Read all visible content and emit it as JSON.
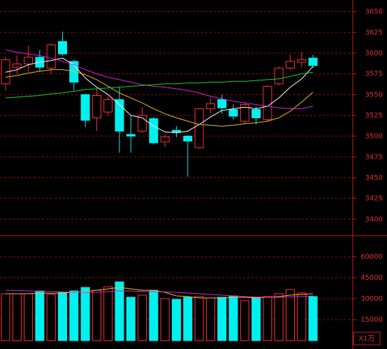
{
  "chart_data": [
    {
      "type": "candlestick",
      "up_color": "#ff3232",
      "down_color": "#00f0f0",
      "open": [
        3563,
        3583,
        3587,
        3595,
        3582,
        3614,
        3590,
        3550,
        3522,
        3529,
        3544,
        3502,
        3506,
        3521,
        3493,
        3507,
        3500,
        3486,
        3533,
        3544,
        3532,
        3518,
        3532,
        3520,
        3563,
        3582,
        3589,
        3594
      ],
      "high": [
        3595,
        3597,
        3609,
        3604,
        3612,
        3626,
        3592,
        3551,
        3557,
        3548,
        3559,
        3525,
        3535,
        3523,
        3502,
        3512,
        3501,
        3534,
        3546,
        3550,
        3538,
        3540,
        3536,
        3561,
        3584,
        3598,
        3601,
        3598
      ],
      "low": [
        3555,
        3575,
        3578,
        3578,
        3575,
        3597,
        3555,
        3511,
        3506,
        3525,
        3480,
        3480,
        3504,
        3490,
        3487,
        3499,
        3451,
        3485,
        3527,
        3527,
        3520,
        3515,
        3514,
        3518,
        3561,
        3580,
        3583,
        3582
      ],
      "close": [
        3592,
        3587,
        3595,
        3583,
        3610,
        3599,
        3565,
        3519,
        3549,
        3544,
        3506,
        3500,
        3525,
        3492,
        3499,
        3505,
        3494,
        3533,
        3539,
        3534,
        3524,
        3538,
        3522,
        3560,
        3582,
        3590,
        3592,
        3585
      ],
      "series": [
        {
          "color": "#ffffff",
          "values": [
            3577,
            3580,
            3586,
            3589,
            3591,
            3594,
            3586,
            3570,
            3559,
            3550,
            3538,
            3525,
            3522,
            3512,
            3505,
            3504,
            3506,
            3514,
            3523,
            3531,
            3533,
            3535,
            3533,
            3536,
            3546,
            3559,
            3569,
            3584
          ]
        },
        {
          "color": "#e8c020",
          "values": [
            3571,
            3573,
            3576,
            3578,
            3580,
            3580,
            3578,
            3574,
            3568,
            3560,
            3552,
            3546,
            3540,
            3533,
            3527,
            3522,
            3518,
            3514,
            3513,
            3512,
            3513,
            3515,
            3516,
            3518,
            3522,
            3530,
            3541,
            3553
          ]
        },
        {
          "color": "#e020e0",
          "values": [
            3604,
            3601,
            3599,
            3597,
            3594,
            3590,
            3586,
            3580,
            3575,
            3571,
            3568,
            3565,
            3562,
            3560,
            3559,
            3557,
            3555,
            3552,
            3548,
            3545,
            3542,
            3540,
            3538,
            3536,
            3534,
            3533,
            3533,
            3536
          ]
        },
        {
          "color": "#20d020",
          "values": [
            3546,
            3547,
            3548,
            3549,
            3551,
            3552,
            3554,
            3556,
            3557,
            3558,
            3559,
            3560,
            3561,
            3562,
            3563,
            3563,
            3564,
            3564,
            3565,
            3565,
            3566,
            3566,
            3567,
            3568,
            3569,
            3572,
            3575,
            3577
          ]
        }
      ],
      "ylim": [
        3380,
        3664
      ],
      "yticks": [
        3400,
        3425,
        3450,
        3475,
        3500,
        3525,
        3550,
        3575,
        3600,
        3625,
        3650
      ],
      "grid": true
    },
    {
      "type": "volume",
      "values": [
        33500,
        33500,
        33500,
        35500,
        33000,
        34500,
        35500,
        38000,
        36000,
        38500,
        42000,
        31000,
        32500,
        36000,
        30000,
        29500,
        31000,
        31500,
        30500,
        31000,
        32000,
        28500,
        31000,
        31500,
        33500,
        36500,
        34000,
        31500
      ],
      "series": [
        {
          "color": "#e8c020",
          "values": [
            33500,
            33500,
            33500,
            34000,
            33800,
            34000,
            34500,
            35000,
            36000,
            37000,
            38000,
            37000,
            36000,
            36000,
            34500,
            32000,
            31500,
            30500,
            30500,
            30500,
            31000,
            31000,
            30500,
            31000,
            31500,
            32500,
            33000,
            33500
          ]
        },
        {
          "color": "#e020e0",
          "values": [
            36000,
            35800,
            35500,
            35200,
            35000,
            34800,
            34600,
            34500,
            34500,
            35000,
            35500,
            35500,
            35200,
            35000,
            34800,
            34500,
            34000,
            33500,
            33000,
            32500,
            32000,
            31500,
            31200,
            31000,
            31000,
            31200,
            31500,
            32000
          ]
        }
      ],
      "ylim": [
        0,
        75000
      ],
      "yticks": [
        15000,
        30000,
        45000,
        60000
      ],
      "grid": true,
      "unit_label": "X1万"
    }
  ]
}
